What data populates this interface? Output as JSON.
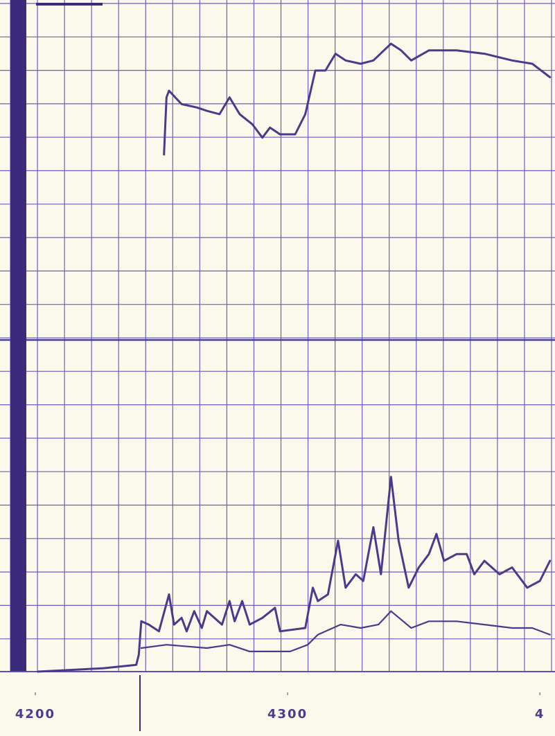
{
  "chart_data": {
    "type": "line",
    "xlim": [
      4186,
      4406
    ],
    "ylim": [
      0,
      20
    ],
    "xticks": [
      4200,
      4300,
      {
        "value": 4400,
        "label": "4"
      }
    ],
    "color": "#4a3a8c",
    "series": [
      {
        "x": [
          4251,
          4252,
          4253,
          4258,
          4264,
          4268,
          4273,
          4277,
          4281,
          4286,
          4290,
          4293,
          4297,
          4303,
          4307,
          4311,
          4315,
          4319,
          4323,
          4329,
          4334,
          4341,
          4345,
          4349,
          4356,
          4367,
          4378,
          4389,
          4397,
          4404
        ],
        "values": [
          15.4,
          17.1,
          17.3,
          16.9,
          16.8,
          16.7,
          16.6,
          17.1,
          16.6,
          16.3,
          15.9,
          16.2,
          16.0,
          16.0,
          16.6,
          17.9,
          17.9,
          18.4,
          18.2,
          18.1,
          18.2,
          18.7,
          18.5,
          18.2,
          18.5,
          18.5,
          18.4,
          18.2,
          18.1,
          17.7
        ]
      },
      {
        "x": [
          4201,
          4227,
          4240,
          4241,
          4242,
          4245,
          4249,
          4253,
          4255,
          4258,
          4260,
          4263,
          4266,
          4268,
          4274,
          4277,
          4279,
          4282,
          4285,
          4290,
          4295,
          4297,
          4307,
          4310,
          4312,
          4316,
          4320,
          4323,
          4327,
          4330,
          4334,
          4337,
          4341,
          4344,
          4348,
          4352,
          4356,
          4359,
          4362,
          4367,
          4371,
          4374,
          4378,
          4384,
          4389,
          4395,
          4400,
          4404
        ],
        "values": [
          0.0,
          0.1,
          0.2,
          0.5,
          1.5,
          1.4,
          1.2,
          2.3,
          1.4,
          1.6,
          1.2,
          1.8,
          1.3,
          1.8,
          1.4,
          2.1,
          1.5,
          2.1,
          1.4,
          1.6,
          1.9,
          1.2,
          1.3,
          2.5,
          2.1,
          2.3,
          3.9,
          2.5,
          2.9,
          2.7,
          4.3,
          2.9,
          5.8,
          3.9,
          2.5,
          3.1,
          3.5,
          4.1,
          3.3,
          3.5,
          3.5,
          2.9,
          3.3,
          2.9,
          3.1,
          2.5,
          2.7,
          3.3
        ]
      },
      {
        "x": [
          4242,
          4252,
          4268,
          4277,
          4285,
          4301,
          4308,
          4312,
          4321,
          4329,
          4336,
          4341,
          4349,
          4356,
          4367,
          4378,
          4389,
          4397,
          4404
        ],
        "values": [
          0.7,
          0.8,
          0.7,
          0.8,
          0.6,
          0.6,
          0.8,
          1.1,
          1.4,
          1.3,
          1.4,
          1.8,
          1.3,
          1.5,
          1.5,
          1.4,
          1.3,
          1.3,
          1.1
        ]
      }
    ]
  }
}
